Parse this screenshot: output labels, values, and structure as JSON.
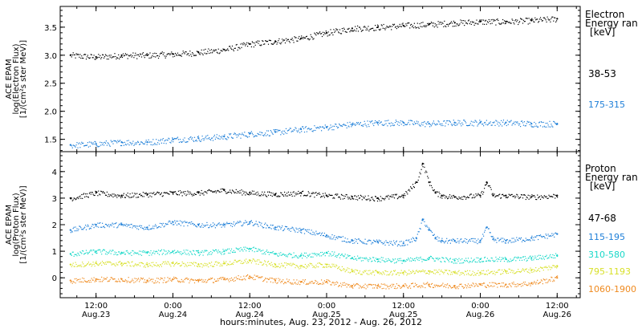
{
  "figure": {
    "xlabel": "hours:minutes, Aug. 23, 2012 - Aug. 26, 2012",
    "x_ticks": [
      {
        "x": 12,
        "time": "12:00",
        "date": "Aug.23"
      },
      {
        "x": 24,
        "time": "0:00",
        "date": "Aug.24"
      },
      {
        "x": 36,
        "time": "12:00",
        "date": "Aug.24"
      },
      {
        "x": 48,
        "time": "0:00",
        "date": "Aug.25"
      },
      {
        "x": 60,
        "time": "12:00",
        "date": "Aug.25"
      },
      {
        "x": 72,
        "time": "0:00",
        "date": "Aug.26"
      },
      {
        "x": 84,
        "time": "12:00",
        "date": "Aug.26"
      }
    ],
    "x_unit": "hours since Aug. 23, 2012 0:00",
    "xlim": [
      6.4,
      87.6
    ]
  },
  "chart_data": [
    {
      "type": "scatter",
      "title": "",
      "ylabel_lines": [
        "ACE EPAM",
        "log(Electron Flux)",
        "[1/(cm²s ster MeV)]"
      ],
      "ylim": [
        1.28,
        3.87
      ],
      "y_ticks": [
        "1.5",
        "2.0",
        "2.5",
        "3.0",
        "3.5"
      ],
      "y_tick_values": [
        1.5,
        2.0,
        2.5,
        3.0,
        3.5
      ],
      "legend_title": [
        "Electron",
        "Energy ran",
        "[keV]"
      ],
      "series": [
        {
          "name": "38-53",
          "color": "#000000",
          "x": [
            8,
            12,
            16,
            20,
            24,
            28,
            32,
            36,
            40,
            44,
            48,
            52,
            56,
            60,
            64,
            68,
            72,
            76,
            80,
            84
          ],
          "y": [
            3.0,
            2.97,
            3.0,
            3.0,
            3.02,
            3.05,
            3.1,
            3.2,
            3.25,
            3.3,
            3.4,
            3.48,
            3.5,
            3.53,
            3.55,
            3.58,
            3.6,
            3.6,
            3.62,
            3.65
          ]
        },
        {
          "name": "175-315",
          "color": "#1e7fd8",
          "x": [
            8,
            12,
            16,
            20,
            24,
            28,
            32,
            36,
            40,
            44,
            48,
            52,
            56,
            60,
            64,
            68,
            72,
            76,
            80,
            84
          ],
          "y": [
            1.4,
            1.42,
            1.45,
            1.45,
            1.5,
            1.52,
            1.55,
            1.6,
            1.63,
            1.68,
            1.72,
            1.77,
            1.8,
            1.8,
            1.78,
            1.8,
            1.8,
            1.8,
            1.78,
            1.78
          ]
        }
      ]
    },
    {
      "type": "scatter",
      "title": "",
      "ylabel_lines": [
        "ACE EPAM",
        "log(Proton Flux)",
        "[1/(cm²s ster MeV)]"
      ],
      "ylim": [
        -0.75,
        4.75
      ],
      "y_ticks": [
        "0",
        "1",
        "2",
        "3",
        "4"
      ],
      "y_tick_values": [
        0,
        1,
        2,
        3,
        4
      ],
      "legend_title": [
        "Proton",
        "Energy ran",
        "[keV]"
      ],
      "series": [
        {
          "name": "47-68",
          "color": "#000000",
          "x": [
            8,
            12,
            16,
            20,
            24,
            28,
            32,
            36,
            40,
            44,
            48,
            52,
            56,
            60,
            62,
            63,
            64,
            65,
            66,
            68,
            72,
            73,
            74,
            76,
            80,
            84
          ],
          "y": [
            3.0,
            3.2,
            3.1,
            3.15,
            3.2,
            3.2,
            3.3,
            3.2,
            3.15,
            3.2,
            3.1,
            3.05,
            3.0,
            3.1,
            3.6,
            4.3,
            3.6,
            3.2,
            3.1,
            3.05,
            3.1,
            3.6,
            3.1,
            3.1,
            3.05,
            3.1
          ]
        },
        {
          "name": "115-195",
          "color": "#1e7fd8",
          "x": [
            8,
            12,
            16,
            20,
            24,
            28,
            32,
            36,
            40,
            44,
            48,
            52,
            56,
            60,
            62,
            63,
            64,
            65,
            66,
            68,
            72,
            73,
            74,
            76,
            80,
            84
          ],
          "y": [
            1.8,
            2.0,
            2.0,
            1.9,
            2.1,
            2.0,
            2.0,
            2.1,
            1.9,
            1.8,
            1.6,
            1.4,
            1.35,
            1.3,
            1.5,
            2.2,
            1.8,
            1.5,
            1.4,
            1.4,
            1.4,
            1.9,
            1.45,
            1.4,
            1.5,
            1.65
          ]
        },
        {
          "name": "310-580",
          "color": "#18d8c8",
          "x": [
            8,
            12,
            16,
            20,
            24,
            28,
            32,
            36,
            40,
            44,
            48,
            52,
            56,
            60,
            64,
            68,
            72,
            76,
            80,
            84
          ],
          "y": [
            0.9,
            1.0,
            0.95,
            0.95,
            1.0,
            0.95,
            1.0,
            1.1,
            0.9,
            0.85,
            0.95,
            0.75,
            0.7,
            0.65,
            0.75,
            0.65,
            0.7,
            0.7,
            0.75,
            0.85
          ]
        },
        {
          "name": "795-1193",
          "color": "#d8e02a",
          "x": [
            8,
            12,
            16,
            20,
            24,
            28,
            32,
            36,
            40,
            44,
            48,
            52,
            56,
            60,
            64,
            68,
            72,
            76,
            80,
            84
          ],
          "y": [
            0.5,
            0.55,
            0.55,
            0.5,
            0.55,
            0.5,
            0.55,
            0.65,
            0.5,
            0.45,
            0.5,
            0.25,
            0.2,
            0.2,
            0.25,
            0.2,
            0.2,
            0.25,
            0.3,
            0.45
          ]
        },
        {
          "name": "1060-1900",
          "color": "#ef8a1f",
          "x": [
            8,
            12,
            16,
            20,
            24,
            28,
            32,
            36,
            40,
            44,
            48,
            52,
            56,
            60,
            64,
            68,
            72,
            76,
            80,
            84
          ],
          "y": [
            -0.1,
            -0.05,
            -0.05,
            -0.1,
            -0.05,
            -0.1,
            -0.05,
            0.05,
            -0.1,
            -0.15,
            -0.15,
            -0.3,
            -0.3,
            -0.3,
            -0.25,
            -0.3,
            -0.25,
            -0.25,
            -0.2,
            0.0
          ]
        }
      ]
    }
  ]
}
